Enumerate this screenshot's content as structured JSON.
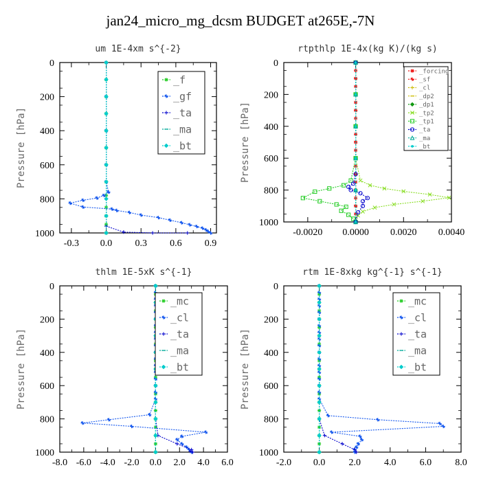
{
  "title": "jan24_micro_mg_dcsm  BUDGET at265E,-7N",
  "colors": {
    "green": "#22cc22",
    "blue": "#1155ee",
    "navy": "#0000cc",
    "cyan": "#00cccc",
    "teal": "#00aa99",
    "red": "#ee1111",
    "yellow": "#ccbb00",
    "lightgreen": "#88dd22",
    "dkgreen": "#119911"
  },
  "chart_data": [
    {
      "type": "line",
      "title": "um  1E-4xm s^{-2}",
      "ylabel": "Pressure [hPa]",
      "xlim": [
        -0.4,
        0.95
      ],
      "ylim": [
        1000,
        0
      ],
      "xticks": [
        -0.3,
        0.0,
        0.3,
        0.6,
        0.9
      ],
      "xticklabels": [
        "-0.3",
        "0.0",
        "0.3",
        "0.6",
        "0.9"
      ],
      "yticks": [
        0,
        200,
        400,
        600,
        800,
        1000
      ],
      "yticklabels": [
        "0",
        "200",
        "400",
        "600",
        "800",
        "1000"
      ],
      "legend_font": 15,
      "legend": [
        "_f",
        "_gf",
        "_ta",
        "_ma",
        "_bt"
      ],
      "series": [
        {
          "name": "_f",
          "color": "green",
          "x": [
            0,
            0,
            0,
            0,
            0,
            0,
            0,
            0,
            0,
            0,
            0,
            0,
            0
          ],
          "y": [
            0,
            100,
            200,
            300,
            400,
            500,
            600,
            700,
            780,
            850,
            900,
            950,
            1000
          ]
        },
        {
          "name": "_gf",
          "color": "blue",
          "x": [
            0,
            0,
            0,
            0,
            0,
            0.02,
            -0.02,
            -0.08,
            -0.2,
            -0.31,
            -0.2,
            0.05,
            0.09,
            0.2,
            0.3,
            0.45,
            0.55,
            0.65,
            0.72,
            0.78,
            0.83,
            0.86,
            0.88,
            0.9
          ],
          "y": [
            0,
            200,
            400,
            600,
            700,
            760,
            780,
            795,
            808,
            825,
            848,
            860,
            868,
            880,
            895,
            910,
            925,
            940,
            952,
            962,
            972,
            982,
            992,
            1000
          ]
        },
        {
          "name": "_ta",
          "color": "navy",
          "x": [
            0,
            0,
            0,
            0,
            0,
            0,
            0,
            0.15,
            0.4,
            0.7
          ],
          "y": [
            0,
            200,
            400,
            600,
            800,
            900,
            960,
            995,
            1000,
            1000
          ]
        },
        {
          "name": "_ma",
          "color": "teal",
          "x": [
            0,
            0,
            0,
            0,
            0,
            0,
            0
          ],
          "y": [
            0,
            200,
            400,
            600,
            800,
            900,
            1000
          ]
        },
        {
          "name": "_bt",
          "color": "cyan",
          "x": [
            0,
            0,
            0,
            0,
            0,
            0,
            0,
            0,
            0,
            0,
            0
          ],
          "y": [
            0,
            100,
            200,
            300,
            400,
            500,
            600,
            700,
            800,
            900,
            1000
          ]
        }
      ]
    },
    {
      "type": "line",
      "title": "rtpthlp  1E-4x(kg K)/(kg s)",
      "ylabel": "Pressure [hPa]",
      "xlim": [
        -0.003,
        0.004
      ],
      "ylim": [
        1000,
        0
      ],
      "xticks": [
        -0.002,
        0.0,
        0.002,
        0.004
      ],
      "xticklabels": [
        "-0.0020",
        "0.0000",
        "0.0020",
        "0.0040"
      ],
      "yticks": [
        0,
        200,
        400,
        600,
        800,
        1000
      ],
      "yticklabels": [
        "0",
        "200",
        "400",
        "600",
        "800",
        "1000"
      ],
      "legend_font": 9,
      "legend": [
        "_forcing",
        "_sf",
        "_cl",
        "_dp2",
        "_dp1",
        "_tp2",
        "_tp1",
        "_ta",
        "_ma",
        "_bt"
      ],
      "series": [
        {
          "name": "_forcing",
          "color": "red",
          "x": [
            0,
            0,
            0,
            0,
            0,
            0,
            0,
            0,
            0,
            0,
            0,
            0,
            0,
            0,
            0,
            0,
            0,
            0,
            0,
            0,
            0
          ],
          "y": [
            0,
            50,
            100,
            150,
            200,
            250,
            300,
            350,
            400,
            450,
            500,
            550,
            600,
            650,
            700,
            750,
            800,
            850,
            900,
            950,
            1000
          ]
        },
        {
          "name": "_sf",
          "color": "red",
          "x": [
            0,
            0,
            0,
            0,
            0,
            0,
            0,
            0,
            0,
            0,
            0
          ],
          "y": [
            0,
            100,
            200,
            300,
            400,
            500,
            600,
            700,
            800,
            900,
            1000
          ]
        },
        {
          "name": "_cl",
          "color": "yellow",
          "x": [
            0,
            0,
            0,
            0,
            0,
            0
          ],
          "y": [
            0,
            200,
            400,
            600,
            800,
            1000
          ]
        },
        {
          "name": "_dp2",
          "color": "yellow",
          "x": [
            0,
            0,
            0,
            0,
            0,
            0
          ],
          "y": [
            0,
            200,
            400,
            600,
            800,
            1000
          ]
        },
        {
          "name": "_dp1",
          "color": "dkgreen",
          "x": [
            0,
            0,
            0,
            0,
            0,
            0
          ],
          "y": [
            0,
            200,
            400,
            600,
            800,
            1000
          ]
        },
        {
          "name": "_tp2",
          "color": "lightgreen",
          "x": [
            0,
            0,
            0,
            0,
            0.0002,
            0.0006,
            0.0012,
            0.002,
            0.0031,
            0.0039,
            0.0028,
            0.0016,
            0.0008,
            0.0003,
            0.0001,
            0
          ],
          "y": [
            0,
            200,
            400,
            600,
            740,
            770,
            790,
            808,
            828,
            848,
            870,
            890,
            910,
            935,
            960,
            1000
          ]
        },
        {
          "name": "_tp1",
          "color": "green",
          "x": [
            0,
            0,
            0,
            0,
            -0.0002,
            -0.0005,
            -0.0011,
            -0.0017,
            -0.0022,
            -0.0015,
            -0.0008,
            -0.0004,
            -0.0006,
            -0.0003,
            -0.0001,
            0
          ],
          "y": [
            0,
            200,
            400,
            600,
            740,
            770,
            790,
            810,
            850,
            870,
            890,
            905,
            930,
            955,
            980,
            1000
          ]
        },
        {
          "name": "_ta",
          "color": "navy",
          "x": [
            0,
            0,
            -0.0001,
            -0.0003,
            -0.0002,
            0.0002,
            0.0005,
            0.0003,
            0.0003,
            0.0001,
            0
          ],
          "y": [
            0,
            700,
            760,
            780,
            800,
            820,
            850,
            870,
            900,
            940,
            1000
          ]
        },
        {
          "name": "_ma",
          "color": "teal",
          "x": [
            0,
            0,
            0,
            0,
            0,
            0
          ],
          "y": [
            0,
            200,
            400,
            600,
            800,
            1000
          ]
        },
        {
          "name": "_bt",
          "color": "cyan",
          "x": [
            0,
            0,
            0,
            0,
            0,
            0
          ],
          "y": [
            0,
            200,
            400,
            600,
            800,
            1000
          ]
        }
      ]
    },
    {
      "type": "line",
      "title": "thlm  1E-5xK s^{-1}",
      "ylabel": "Pressure [hPa]",
      "xlim": [
        -8,
        6
      ],
      "ylim": [
        1000,
        0
      ],
      "xticks": [
        -8,
        -6,
        -4,
        -2,
        0,
        2,
        4,
        6
      ],
      "xticklabels": [
        "-8.0",
        "-6.0",
        "-4.0",
        "-2.0",
        "0.0",
        "2.0",
        "4.0",
        "6.0"
      ],
      "yticks": [
        0,
        200,
        400,
        600,
        800,
        1000
      ],
      "yticklabels": [
        "0",
        "200",
        "400",
        "600",
        "800",
        "1000"
      ],
      "legend_font": 15,
      "legend": [
        "_mc",
        "_cl",
        "_ta",
        "_ma",
        "_bt"
      ],
      "series": [
        {
          "name": "_mc",
          "color": "green",
          "x": [
            0,
            0,
            0,
            0,
            0,
            0,
            0,
            0,
            0,
            0,
            0,
            0,
            0,
            0,
            0,
            0,
            0,
            0,
            0,
            0,
            0
          ],
          "y": [
            0,
            50,
            100,
            150,
            200,
            250,
            300,
            350,
            400,
            450,
            500,
            550,
            600,
            650,
            700,
            750,
            800,
            850,
            900,
            950,
            1000
          ]
        },
        {
          "name": "_cl",
          "color": "blue",
          "x": [
            0,
            0,
            0,
            0,
            0,
            0,
            0,
            0,
            0,
            0,
            0,
            0,
            0,
            0,
            0,
            0,
            0,
            0,
            -0.5,
            -3.9,
            -6.1,
            -2.0,
            4.2,
            2.2,
            1.8,
            2.2,
            2.6,
            2.8,
            3.0
          ],
          "y": [
            0,
            40,
            80,
            120,
            160,
            200,
            240,
            280,
            320,
            360,
            400,
            440,
            480,
            520,
            560,
            600,
            640,
            680,
            775,
            805,
            825,
            845,
            880,
            905,
            925,
            950,
            970,
            985,
            1000
          ]
        },
        {
          "name": "_ta",
          "color": "navy",
          "x": [
            0,
            0,
            0,
            0.2,
            1.8,
            3.0,
            2.9,
            3.1
          ],
          "y": [
            0,
            400,
            800,
            900,
            950,
            985,
            995,
            1000
          ]
        },
        {
          "name": "_ma",
          "color": "teal",
          "x": [
            0,
            0,
            0,
            0,
            0,
            0
          ],
          "y": [
            0,
            200,
            400,
            600,
            800,
            1000
          ]
        },
        {
          "name": "_bt",
          "color": "cyan",
          "x": [
            0,
            0,
            0,
            0,
            0,
            0,
            0,
            0,
            0,
            0,
            0
          ],
          "y": [
            0,
            100,
            200,
            300,
            400,
            500,
            600,
            700,
            800,
            900,
            1000
          ]
        }
      ]
    },
    {
      "type": "line",
      "title": "rtm  1E-8xkg kg^{-1} s^{-1}",
      "ylabel": "Pressure [hPa]",
      "xlim": [
        -2,
        8
      ],
      "ylim": [
        1000,
        0
      ],
      "xticks": [
        -2,
        0,
        2,
        4,
        6,
        8
      ],
      "xticklabels": [
        "-2.0",
        "0.0",
        "2.0",
        "4.0",
        "6.0",
        "8.0"
      ],
      "yticks": [
        0,
        200,
        400,
        600,
        800,
        1000
      ],
      "yticklabels": [
        "0",
        "200",
        "400",
        "600",
        "800",
        "1000"
      ],
      "legend_font": 15,
      "legend": [
        "_mc",
        "_cl",
        "_ta",
        "_ma",
        "_bt"
      ],
      "series": [
        {
          "name": "_mc",
          "color": "green",
          "x": [
            0,
            0,
            0,
            0,
            0,
            0,
            0,
            0,
            0,
            0,
            0,
            0,
            0,
            0,
            0,
            0,
            0,
            0,
            0,
            0,
            0
          ],
          "y": [
            0,
            50,
            100,
            150,
            200,
            250,
            300,
            350,
            400,
            450,
            500,
            550,
            600,
            650,
            700,
            750,
            800,
            850,
            900,
            950,
            1000
          ]
        },
        {
          "name": "_cl",
          "color": "blue",
          "x": [
            0,
            0,
            0,
            0,
            0,
            0,
            0,
            0,
            0,
            0,
            0,
            0,
            0,
            0,
            0,
            0,
            0,
            0,
            0.5,
            3.3,
            6.8,
            7.0,
            0.7,
            2.3,
            2.4,
            2.2,
            2.1,
            2.0,
            2.0
          ],
          "y": [
            0,
            40,
            80,
            120,
            160,
            200,
            240,
            280,
            320,
            360,
            400,
            440,
            480,
            520,
            560,
            600,
            640,
            680,
            780,
            805,
            828,
            845,
            880,
            905,
            925,
            950,
            970,
            985,
            1000
          ]
        },
        {
          "name": "_ta",
          "color": "navy",
          "x": [
            0,
            0,
            0,
            0.3,
            1.3,
            2.0,
            2.1
          ],
          "y": [
            0,
            400,
            800,
            900,
            950,
            985,
            1000
          ]
        },
        {
          "name": "_ma",
          "color": "teal",
          "x": [
            0,
            0,
            0,
            0,
            0,
            0
          ],
          "y": [
            0,
            200,
            400,
            600,
            800,
            1000
          ]
        },
        {
          "name": "_bt",
          "color": "cyan",
          "x": [
            0,
            0,
            0,
            0,
            0,
            0,
            0,
            0,
            0,
            0,
            0
          ],
          "y": [
            0,
            100,
            200,
            300,
            400,
            500,
            600,
            700,
            800,
            900,
            1000
          ]
        }
      ]
    }
  ]
}
